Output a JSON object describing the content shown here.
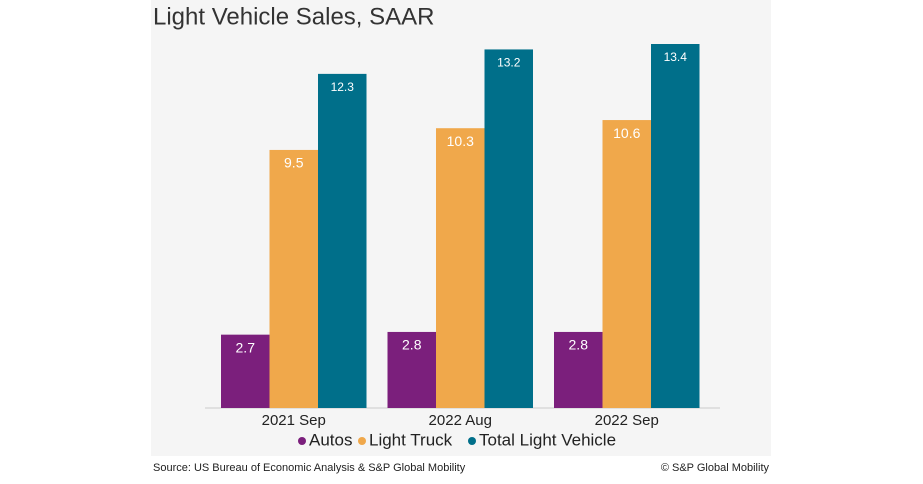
{
  "chart_data": {
    "type": "bar",
    "title": "Light Vehicle Sales, SAAR",
    "categories": [
      "2021 Sep",
      "2022 Aug",
      "2022 Sep"
    ],
    "series": [
      {
        "name": "Autos",
        "color": "#7b1f7c",
        "values": [
          2.7,
          2.8,
          2.8
        ]
      },
      {
        "name": "Light Truck",
        "color": "#f0a84b",
        "values": [
          9.5,
          10.3,
          10.6
        ]
      },
      {
        "name": "Total Light Vehicle",
        "color": "#006f8a",
        "values": [
          12.3,
          13.2,
          13.4
        ]
      }
    ],
    "source": "Source: US Bureau of Economic Analysis & S&P Global Mobility",
    "copyright": "© S&P Global Mobility"
  }
}
